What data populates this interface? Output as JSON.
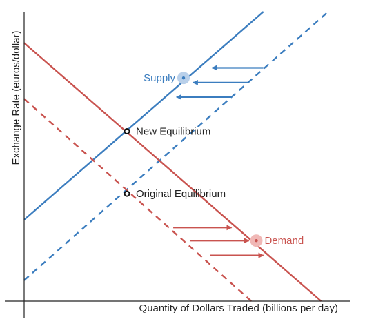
{
  "chart_data": {
    "type": "line",
    "title": "",
    "xlabel": "Quantity of Dollars Traded (billions per day)",
    "ylabel": "Exchange Rate (euros/dollar)",
    "xlim": [
      0,
      100
    ],
    "ylim": [
      0,
      100
    ],
    "ticks": "none",
    "grid": false,
    "series": [
      {
        "role": "supply-new",
        "name": "Supply",
        "style": "solid",
        "color": "#3b7dbf",
        "x": [
          0,
          81.2
        ],
        "y": [
          28.1,
          100
        ],
        "label_point": [
          54.1,
          77.1
        ],
        "shift_arrows": [
          {
            "from": [
              81.2,
              80.6
            ],
            "to": [
              63.8,
              80.6
            ]
          },
          {
            "from": [
              76.3,
              75.5
            ],
            "to": [
              57.3,
              75.5
            ]
          },
          {
            "from": [
              70.4,
              70.5
            ],
            "to": [
              51.7,
              70.5
            ]
          }
        ]
      },
      {
        "role": "supply-original",
        "style": "dashed",
        "color": "#3b7dbf",
        "x": [
          0,
          103.2
        ],
        "y": [
          7.2,
          100
        ]
      },
      {
        "role": "demand-new",
        "name": "Demand",
        "style": "solid",
        "color": "#c9534f",
        "x": [
          0,
          100.8
        ],
        "y": [
          89.2,
          0
        ],
        "label_point": [
          78.8,
          20.9
        ],
        "shift_arrows": [
          {
            "from": [
              50.6,
              25.4
            ],
            "to": [
              70.4,
              25.4
            ]
          },
          {
            "from": [
              56.2,
              20.9
            ],
            "to": [
              76.3,
              20.9
            ]
          },
          {
            "from": [
              63.2,
              15.8
            ],
            "to": [
              81.2,
              15.8
            ]
          }
        ]
      },
      {
        "role": "demand-original",
        "style": "dashed",
        "color": "#c9534f",
        "x": [
          0,
          77.1
        ],
        "y": [
          69.9,
          0
        ]
      }
    ],
    "points": [
      {
        "name": "New Equilibrium",
        "label": "New Equilibrium",
        "x": 34.9,
        "y": 58.7
      },
      {
        "name": "Original Equilibrium",
        "label": "Original Equilibrium",
        "x": 34.9,
        "y": 37.1
      }
    ],
    "colors": {
      "supply": "#3b7dbf",
      "supply_highlight": "#b9d0ea",
      "demand": "#c9534f",
      "demand_highlight": "#f0b8b6",
      "axis": "#222222"
    }
  }
}
